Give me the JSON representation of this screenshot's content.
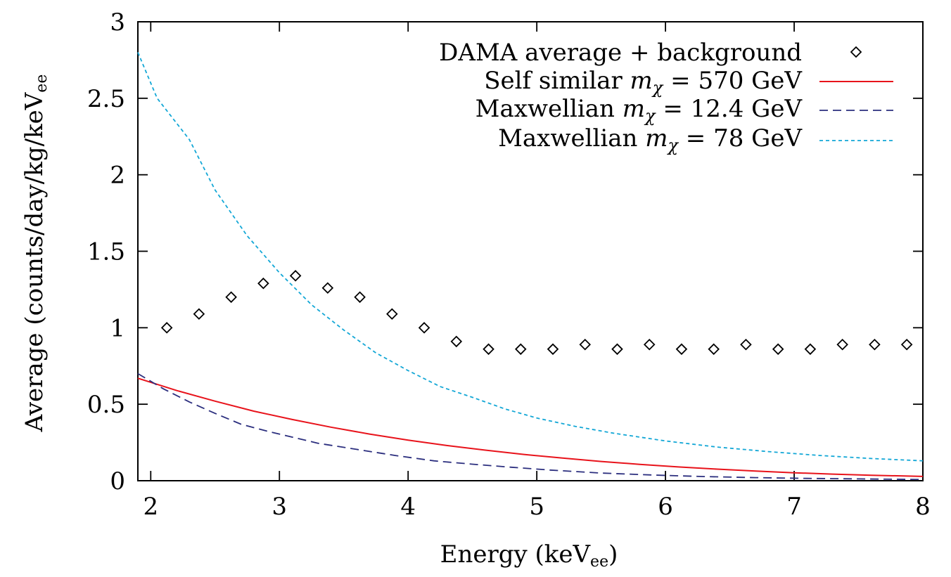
{
  "chart_data": {
    "type": "line",
    "xlabel": {
      "main": "Energy (keV",
      "sub": "ee",
      "end": ")"
    },
    "ylabel": {
      "main": "Average (counts/day/kg/keV",
      "sub": "ee"
    },
    "xlim": [
      1.9,
      8
    ],
    "ylim": [
      0,
      3
    ],
    "xticks": [
      "2",
      "3",
      "4",
      "5",
      "6",
      "7",
      "8"
    ],
    "yticks": [
      "0",
      "0.5",
      "1",
      "1.5",
      "2",
      "2.5",
      "3"
    ],
    "grid": false,
    "legend_position": "top-right",
    "series": [
      {
        "name": "DAMA average + background",
        "kind": "points",
        "marker": "diamond",
        "color": "#000000",
        "x": [
          2.125,
          2.375,
          2.625,
          2.875,
          3.125,
          3.375,
          3.625,
          3.875,
          4.125,
          4.375,
          4.625,
          4.875,
          5.125,
          5.375,
          5.625,
          5.875,
          6.125,
          6.375,
          6.625,
          6.875,
          7.125,
          7.375,
          7.625,
          7.875
        ],
        "y": [
          1.0,
          1.09,
          1.2,
          1.29,
          1.34,
          1.26,
          1.2,
          1.09,
          1.0,
          0.91,
          0.86,
          0.86,
          0.86,
          0.89,
          0.86,
          0.89,
          0.86,
          0.86,
          0.89,
          0.86,
          0.86,
          0.89,
          0.89,
          0.89
        ]
      },
      {
        "name": "Self similar",
        "mass_label": "m",
        "mass_sub": "χ",
        "mass_value": " = 570 GeV",
        "kind": "line",
        "dash": "solid",
        "color": "#e8131b",
        "x": [
          1.9,
          2.2,
          2.5,
          2.8,
          3.1,
          3.4,
          3.7,
          4.0,
          4.3,
          4.6,
          4.9,
          5.2,
          5.5,
          5.8,
          6.1,
          6.4,
          6.7,
          7.0,
          7.3,
          7.6,
          8.0
        ],
        "y": [
          0.67,
          0.59,
          0.52,
          0.455,
          0.4,
          0.35,
          0.305,
          0.265,
          0.23,
          0.2,
          0.172,
          0.148,
          0.126,
          0.107,
          0.09,
          0.076,
          0.063,
          0.052,
          0.043,
          0.036,
          0.028
        ]
      },
      {
        "name": "Maxwellian",
        "mass_label": "m",
        "mass_sub": "χ",
        "mass_value": " = 12.4 GeV",
        "kind": "line",
        "dash": "long-dash",
        "color": "#2b2e7e",
        "x": [
          1.9,
          2.1,
          2.3,
          2.5,
          2.7,
          2.9,
          3.1,
          3.3,
          3.6,
          3.9,
          4.2,
          4.5,
          4.8,
          5.1,
          5.5,
          5.9,
          6.3,
          6.7,
          7.1,
          7.5,
          8.0
        ],
        "y": [
          0.7,
          0.6,
          0.515,
          0.44,
          0.37,
          0.325,
          0.285,
          0.245,
          0.205,
          0.165,
          0.13,
          0.108,
          0.088,
          0.07,
          0.05,
          0.037,
          0.027,
          0.02,
          0.015,
          0.012,
          0.008
        ]
      },
      {
        "name": "Maxwellian",
        "mass_label": "m",
        "mass_sub": "χ",
        "mass_value": " = 78 GeV",
        "kind": "line",
        "dash": "short-dash",
        "color": "#13a7d6",
        "x": [
          1.9,
          2.05,
          2.3,
          2.5,
          2.75,
          3.0,
          3.25,
          3.5,
          3.75,
          4.0,
          4.25,
          4.5,
          4.75,
          5.0,
          5.3,
          5.6,
          6.0,
          6.4,
          6.8,
          7.2,
          7.6,
          8.0
        ],
        "y": [
          2.8,
          2.5,
          2.23,
          1.9,
          1.6,
          1.36,
          1.15,
          0.985,
          0.835,
          0.72,
          0.615,
          0.545,
          0.47,
          0.41,
          0.355,
          0.31,
          0.26,
          0.22,
          0.19,
          0.165,
          0.145,
          0.13
        ]
      }
    ]
  }
}
